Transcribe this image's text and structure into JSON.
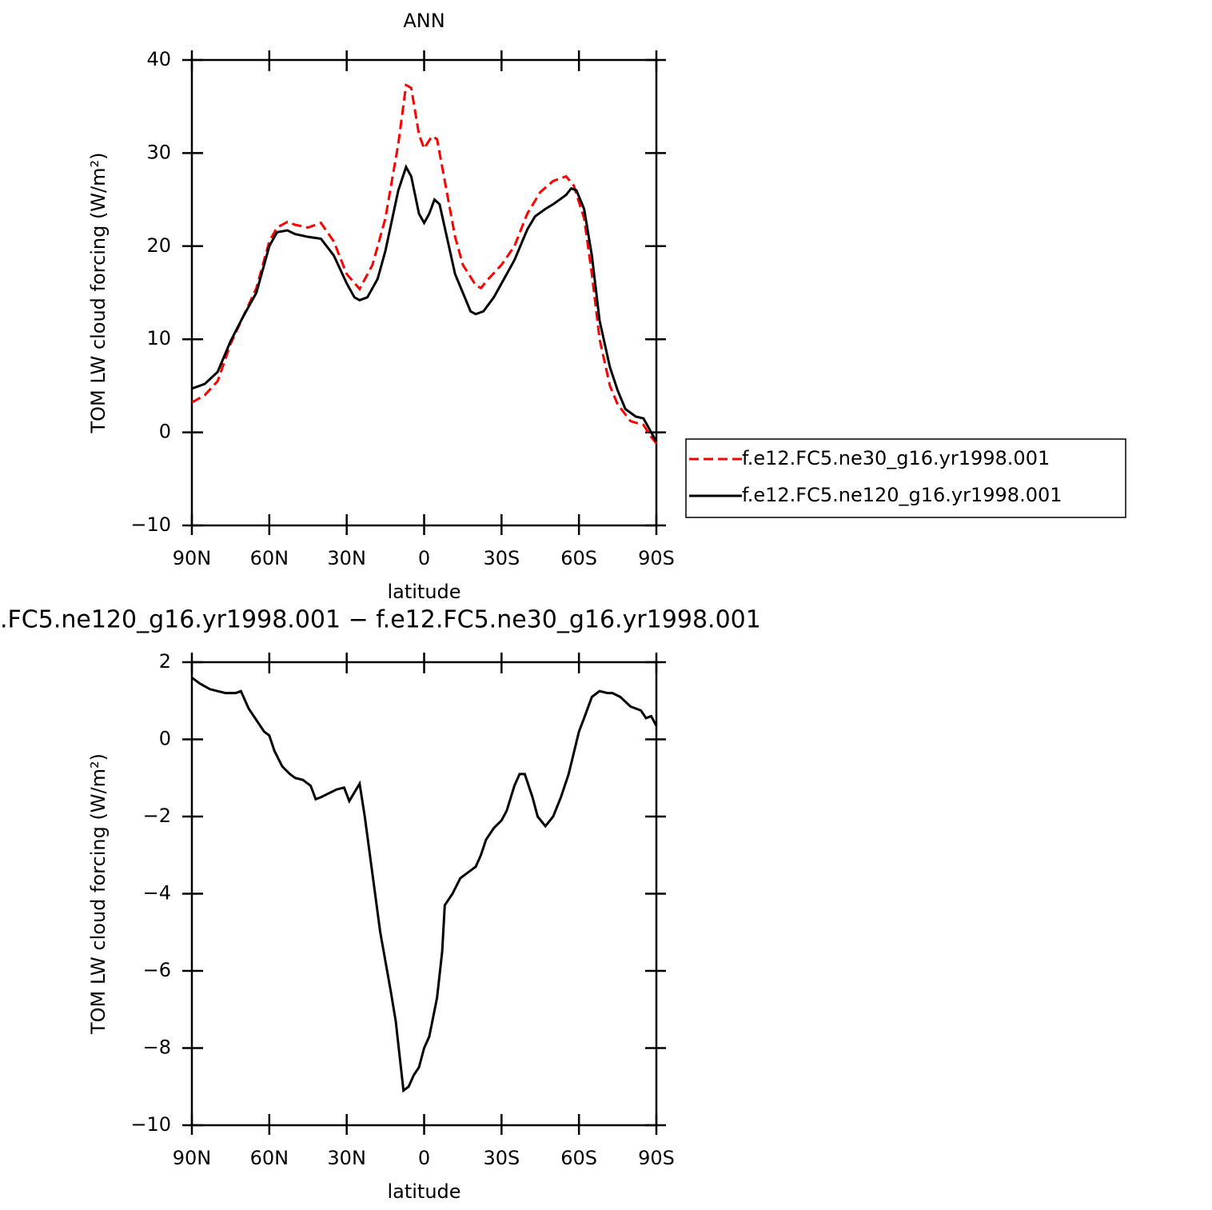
{
  "chart_data": [
    {
      "type": "line",
      "title": "ANN",
      "xlabel": "latitude",
      "ylabel": "TOM LW cloud forcing (W/m²)",
      "xlim": [
        90,
        -90
      ],
      "ylim": [
        -10,
        40
      ],
      "xticks": [
        {
          "value": 90,
          "label": "90N"
        },
        {
          "value": 60,
          "label": "60N"
        },
        {
          "value": 30,
          "label": "30N"
        },
        0,
        {
          "value": -30,
          "label": "30S"
        },
        {
          "value": -60,
          "label": "60S"
        },
        {
          "value": -90,
          "label": "90S"
        }
      ],
      "yticks": [
        {
          "value": -10,
          "label": "−10"
        },
        0,
        10,
        20,
        30,
        40
      ],
      "legend": "right",
      "series": [
        {
          "name": "f.e12.FC5.ne30_g16.yr1998.001",
          "color": "#ff0000",
          "dash": true,
          "x": [
            90,
            85,
            80,
            75,
            70,
            65,
            60,
            57,
            53,
            50,
            45,
            40,
            35,
            30,
            25,
            20,
            15,
            10,
            7,
            5,
            2,
            0,
            -3,
            -5,
            -8,
            -12,
            -15,
            -20,
            -22,
            -25,
            -30,
            -35,
            -40,
            -45,
            -50,
            -55,
            -58,
            -62,
            -65,
            -68,
            -72,
            -75,
            -80,
            -85,
            -88,
            -90
          ],
          "values": [
            3.2,
            4.0,
            5.5,
            9.5,
            12.5,
            15.5,
            20.5,
            22.0,
            22.6,
            22.3,
            22.0,
            22.5,
            20.5,
            17.0,
            15.4,
            18.0,
            23,
            31,
            37.3,
            37,
            32,
            30.5,
            31.8,
            31.5,
            27,
            21,
            18,
            15.8,
            15.5,
            16.5,
            18,
            20,
            23.5,
            25.8,
            27,
            27.5,
            26.5,
            23,
            17,
            10,
            5,
            3,
            1.2,
            0.8,
            -0.5,
            -1.2
          ]
        },
        {
          "name": "f.e12.FC5.ne120_g16.yr1998.001",
          "color": "#000000",
          "dash": false,
          "x": [
            90,
            85,
            80,
            75,
            70,
            65,
            60,
            57,
            53,
            50,
            45,
            40,
            35,
            30,
            27,
            25,
            22,
            18,
            15,
            10,
            7,
            5,
            2,
            0,
            -2,
            -4,
            -6,
            -8,
            -12,
            -15,
            -18,
            -20,
            -23,
            -27,
            -30,
            -35,
            -40,
            -43,
            -47,
            -50,
            -55,
            -57,
            -59,
            -62,
            -65,
            -68,
            -72,
            -75,
            -78,
            -82,
            -85,
            -88,
            -90
          ],
          "values": [
            4.7,
            5.2,
            6.5,
            9.8,
            12.5,
            15,
            20,
            21.5,
            21.7,
            21.3,
            21,
            20.8,
            19,
            16,
            14.5,
            14.2,
            14.5,
            16.5,
            19.5,
            26,
            28.5,
            27.5,
            23.5,
            22.5,
            23.5,
            25,
            24.5,
            22,
            17,
            15,
            13,
            12.7,
            13,
            14.5,
            16,
            18.5,
            21.8,
            23.2,
            24,
            24.5,
            25.5,
            26.2,
            26,
            24,
            19,
            12,
            7,
            4.5,
            2.5,
            1.7,
            1.5,
            0,
            -1
          ]
        }
      ]
    },
    {
      "type": "line",
      "title": ".FC5.ne120_g16.yr1998.001 − f.e12.FC5.ne30_g16.yr1998.001",
      "xlabel": "latitude",
      "ylabel": "TOM LW cloud forcing (W/m²)",
      "xlim": [
        90,
        -90
      ],
      "ylim": [
        -10,
        2
      ],
      "xticks": [
        {
          "value": 90,
          "label": "90N"
        },
        {
          "value": 60,
          "label": "60N"
        },
        {
          "value": 30,
          "label": "30N"
        },
        0,
        {
          "value": -30,
          "label": "30S"
        },
        {
          "value": -60,
          "label": "60S"
        },
        {
          "value": -90,
          "label": "90S"
        }
      ],
      "yticks": [
        {
          "value": -10,
          "label": "−10"
        },
        {
          "value": -8,
          "label": "−8"
        },
        {
          "value": -6,
          "label": "−6"
        },
        {
          "value": -4,
          "label": "−4"
        },
        {
          "value": -2,
          "label": "−2"
        },
        0,
        2
      ],
      "series": [
        {
          "color": "#000000",
          "dash": false,
          "x": [
            90,
            87,
            83,
            80,
            77,
            73,
            71,
            68,
            65,
            62,
            60,
            58,
            55,
            52,
            50,
            47,
            44,
            42,
            40,
            37,
            34,
            31,
            29,
            25,
            23,
            20,
            17,
            13,
            11,
            8,
            6,
            4,
            2,
            0,
            -2,
            -5,
            -7,
            -8,
            -11,
            -14,
            -17,
            -20,
            -22,
            -24,
            -27,
            -30,
            -32,
            -35,
            -37,
            -39,
            -42,
            -44,
            -47,
            -50,
            -53,
            -56,
            -60,
            -62,
            -65,
            -68,
            -71,
            -73,
            -76,
            -80,
            -84,
            -86,
            -88,
            -90
          ],
          "values": [
            1.6,
            1.45,
            1.3,
            1.25,
            1.2,
            1.2,
            1.25,
            0.8,
            0.5,
            0.2,
            0.1,
            -0.3,
            -0.7,
            -0.9,
            -1.0,
            -1.05,
            -1.2,
            -1.55,
            -1.5,
            -1.4,
            -1.3,
            -1.25,
            -1.6,
            -1.15,
            -2,
            -3.5,
            -5,
            -6.5,
            -7.3,
            -9.1,
            -9.0,
            -8.7,
            -8.5,
            -8,
            -7.7,
            -6.7,
            -5.5,
            -4.3,
            -4,
            -3.6,
            -3.45,
            -3.3,
            -3.0,
            -2.6,
            -2.3,
            -2.1,
            -1.85,
            -1.2,
            -0.9,
            -0.9,
            -1.5,
            -2.0,
            -2.25,
            -2.0,
            -1.5,
            -0.9,
            0.2,
            0.55,
            1.1,
            1.25,
            1.2,
            1.2,
            1.1,
            0.85,
            0.75,
            0.55,
            0.6,
            0.35
          ]
        }
      ]
    }
  ]
}
